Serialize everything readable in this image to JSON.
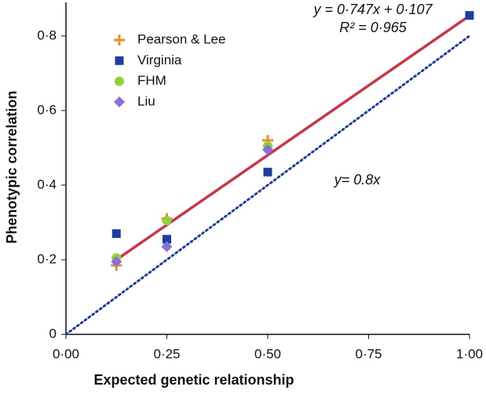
{
  "chart_data": {
    "type": "scatter",
    "x_label": "Expected genetic relationship",
    "y_label": "Phenotypic correlation",
    "xlim": [
      0,
      1
    ],
    "ylim": [
      0,
      0.89
    ],
    "xticks": [
      {
        "value": 0,
        "label": "0·00"
      },
      {
        "value": 0.25,
        "label": "0·25"
      },
      {
        "value": 0.5,
        "label": "0·50"
      },
      {
        "value": 0.75,
        "label": "0·75"
      },
      {
        "value": 1,
        "label": "1·00"
      }
    ],
    "yticks": [
      0,
      {
        "value": 0.2,
        "label": "0·2"
      },
      {
        "value": 0.4,
        "label": "0·4"
      },
      {
        "value": 0.6,
        "label": "0·6"
      },
      {
        "value": 0.8,
        "label": "0·8"
      }
    ],
    "legend": "upper left",
    "series": [
      {
        "name": "Pearson & Lee",
        "color": "#f28a2e",
        "marker": "plus",
        "x": [
          0.125,
          0.25,
          0.5
        ],
        "values": [
          0.185,
          0.31,
          0.52
        ]
      },
      {
        "name": "Virginia",
        "color": "#1f3d9e",
        "marker": "square",
        "x": [
          0.125,
          0.25,
          0.5,
          1
        ],
        "values": [
          0.27,
          0.255,
          0.435,
          0.855
        ]
      },
      {
        "name": "FHM",
        "color": "#8fd13a",
        "marker": "circle",
        "x": [
          0.125,
          0.25,
          0.5
        ],
        "values": [
          0.205,
          0.305,
          0.505
        ]
      },
      {
        "name": "Liu",
        "color": "#8d6fd9",
        "marker": "diamond",
        "x": [
          0.125,
          0.25,
          0.5
        ],
        "values": [
          0.195,
          0.235,
          0.495
        ]
      }
    ],
    "lines": [
      {
        "color": "#c8364a",
        "style": "solid",
        "x": [
          0.125,
          1
        ],
        "values": [
          0.2,
          0.854
        ]
      },
      {
        "color": "#1f3d9e",
        "style": "dotted",
        "x": [
          0,
          1
        ],
        "values": [
          0,
          0.8
        ]
      }
    ],
    "annotations": [
      {
        "text": "y = 0·747x + 0·107",
        "color": "#c8364a"
      },
      {
        "text": "R² = 0·965",
        "color": "#c8364a"
      },
      {
        "text": "y= 0.8x",
        "color": "#1f3d9e"
      }
    ]
  }
}
